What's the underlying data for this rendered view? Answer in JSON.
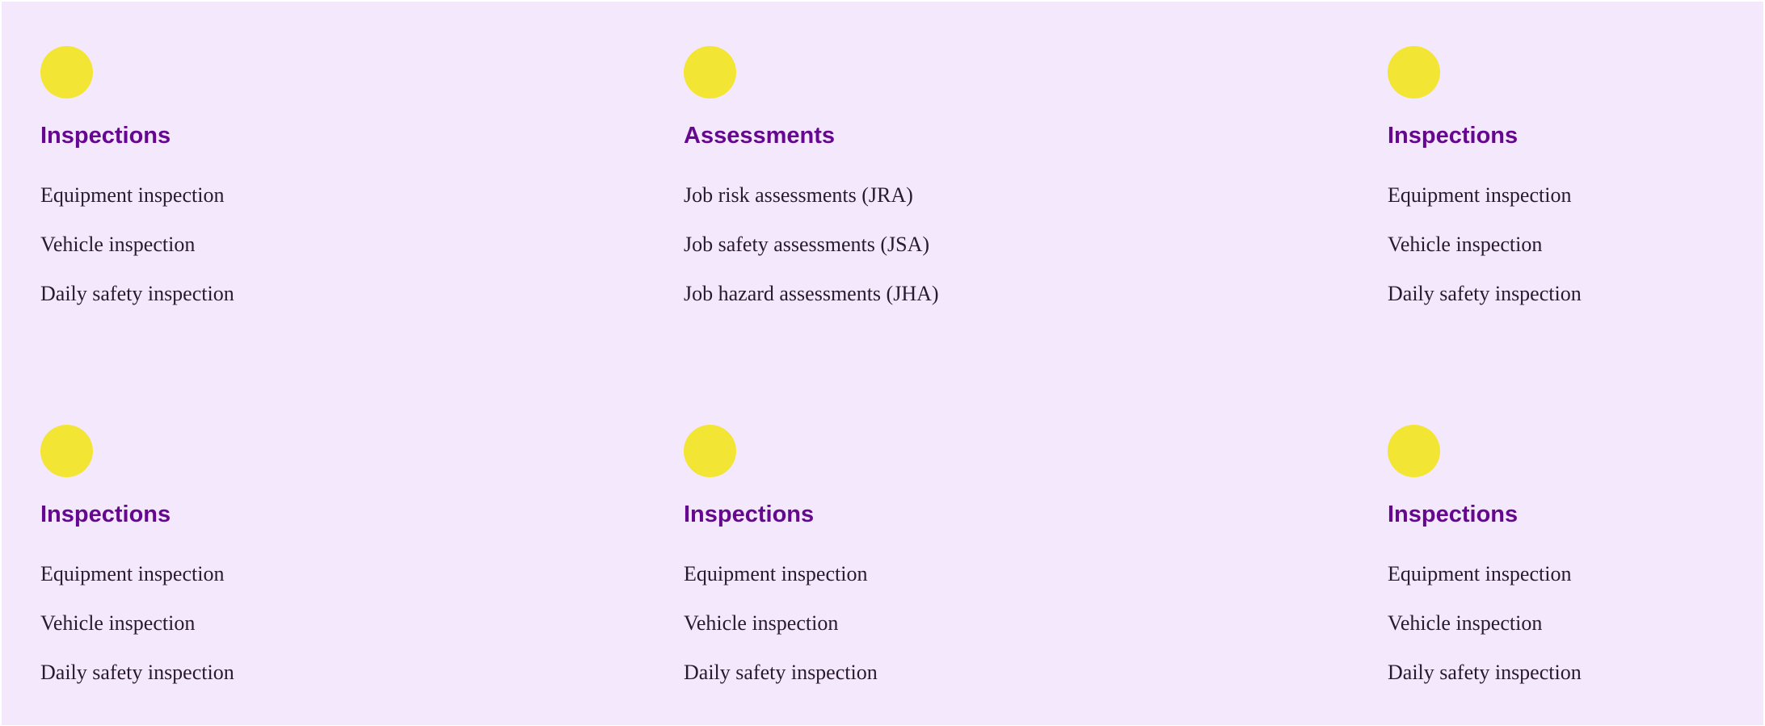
{
  "cards": [
    {
      "title": "Inspections",
      "items": [
        "Equipment inspection",
        "Vehicle inspection",
        "Daily safety inspection"
      ]
    },
    {
      "title": "Assessments",
      "items": [
        "Job risk assessments (JRA)",
        "Job safety assessments (JSA)",
        "Job hazard assessments (JHA)"
      ]
    },
    {
      "title": "Inspections",
      "items": [
        "Equipment inspection",
        "Vehicle inspection",
        "Daily safety inspection"
      ]
    },
    {
      "title": "Inspections",
      "items": [
        "Equipment inspection",
        "Vehicle inspection",
        "Daily safety inspection"
      ]
    },
    {
      "title": "Inspections",
      "items": [
        "Equipment inspection",
        "Vehicle inspection",
        "Daily safety inspection"
      ]
    },
    {
      "title": "Inspections",
      "items": [
        "Equipment inspection",
        "Vehicle inspection",
        "Daily safety inspection"
      ]
    }
  ],
  "colors": {
    "background": "#f3e8fc",
    "accent_dot": "#f3e533",
    "title": "#66088f",
    "text": "#2a1a2e"
  },
  "icons": {
    "card_marker": "yellow-circle-icon"
  }
}
